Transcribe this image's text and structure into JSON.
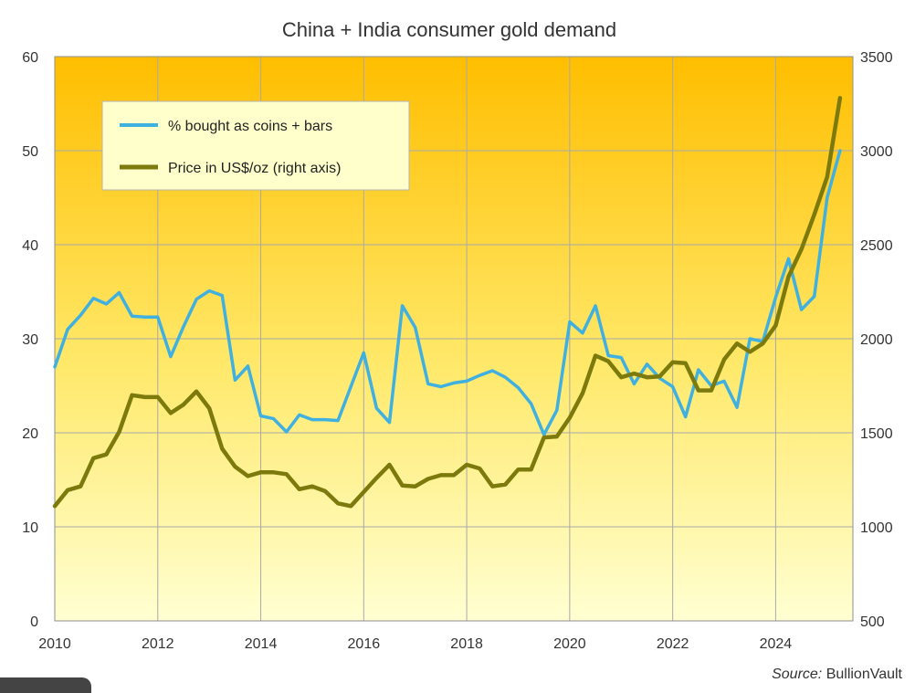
{
  "chart_data": {
    "type": "line",
    "title": "China + India consumer gold demand",
    "x_range": [
      2010,
      2025.5
    ],
    "x_ticks": [
      "2010",
      "2012",
      "2014",
      "2016",
      "2018",
      "2020",
      "2022",
      "2024"
    ],
    "left_axis": {
      "range": [
        0,
        60
      ],
      "ticks": [
        "0",
        "10",
        "20",
        "30",
        "40",
        "50",
        "60"
      ]
    },
    "right_axis": {
      "range": [
        500,
        3500
      ],
      "ticks": [
        "500",
        "1000",
        "1500",
        "2000",
        "2500",
        "3000",
        "3500"
      ]
    },
    "grid": true,
    "legend_position": "top-left",
    "series": [
      {
        "name": "% bought as coins + bars",
        "axis": "left",
        "color": "#3fb0e0",
        "points": [
          [
            2010.0,
            27.0
          ],
          [
            2010.25,
            31.0
          ],
          [
            2010.5,
            32.5
          ],
          [
            2010.75,
            34.3
          ],
          [
            2011.0,
            33.7
          ],
          [
            2011.25,
            34.9
          ],
          [
            2011.5,
            32.4
          ],
          [
            2011.75,
            32.3
          ],
          [
            2012.0,
            32.3
          ],
          [
            2012.25,
            28.1
          ],
          [
            2012.5,
            31.3
          ],
          [
            2012.75,
            34.2
          ],
          [
            2013.0,
            35.1
          ],
          [
            2013.25,
            34.6
          ],
          [
            2013.5,
            25.6
          ],
          [
            2013.75,
            27.1
          ],
          [
            2014.0,
            21.8
          ],
          [
            2014.25,
            21.5
          ],
          [
            2014.5,
            20.1
          ],
          [
            2014.75,
            21.9
          ],
          [
            2015.0,
            21.4
          ],
          [
            2015.25,
            21.4
          ],
          [
            2015.5,
            21.3
          ],
          [
            2015.75,
            24.9
          ],
          [
            2016.0,
            28.5
          ],
          [
            2016.25,
            22.6
          ],
          [
            2016.5,
            21.1
          ],
          [
            2016.75,
            33.5
          ],
          [
            2017.0,
            31.2
          ],
          [
            2017.25,
            25.2
          ],
          [
            2017.5,
            24.9
          ],
          [
            2017.75,
            25.3
          ],
          [
            2018.0,
            25.5
          ],
          [
            2018.25,
            26.1
          ],
          [
            2018.5,
            26.6
          ],
          [
            2018.75,
            25.9
          ],
          [
            2019.0,
            24.8
          ],
          [
            2019.25,
            23.1
          ],
          [
            2019.5,
            19.8
          ],
          [
            2019.75,
            22.4
          ],
          [
            2020.0,
            31.8
          ],
          [
            2020.25,
            30.6
          ],
          [
            2020.5,
            33.5
          ],
          [
            2020.75,
            28.2
          ],
          [
            2021.0,
            28.0
          ],
          [
            2021.25,
            25.2
          ],
          [
            2021.5,
            27.3
          ],
          [
            2021.75,
            25.8
          ],
          [
            2022.0,
            24.9
          ],
          [
            2022.25,
            21.7
          ],
          [
            2022.5,
            26.7
          ],
          [
            2022.75,
            25.0
          ],
          [
            2023.0,
            25.5
          ],
          [
            2023.25,
            22.7
          ],
          [
            2023.5,
            30.0
          ],
          [
            2023.75,
            29.7
          ],
          [
            2024.0,
            34.4
          ],
          [
            2024.25,
            38.5
          ],
          [
            2024.5,
            33.1
          ],
          [
            2024.75,
            34.5
          ],
          [
            2025.0,
            45.0
          ],
          [
            2025.25,
            50.0
          ]
        ]
      },
      {
        "name": "Price in US$/oz (right axis)",
        "axis": "right",
        "color": "#7c7a0c",
        "points": [
          [
            2010.0,
            1110
          ],
          [
            2010.25,
            1195
          ],
          [
            2010.5,
            1215
          ],
          [
            2010.75,
            1365
          ],
          [
            2011.0,
            1385
          ],
          [
            2011.25,
            1505
          ],
          [
            2011.5,
            1700
          ],
          [
            2011.75,
            1690
          ],
          [
            2012.0,
            1690
          ],
          [
            2012.25,
            1605
          ],
          [
            2012.5,
            1650
          ],
          [
            2012.75,
            1720
          ],
          [
            2013.0,
            1630
          ],
          [
            2013.25,
            1415
          ],
          [
            2013.5,
            1320
          ],
          [
            2013.75,
            1270
          ],
          [
            2014.0,
            1290
          ],
          [
            2014.25,
            1290
          ],
          [
            2014.5,
            1280
          ],
          [
            2014.75,
            1200
          ],
          [
            2015.0,
            1215
          ],
          [
            2015.25,
            1190
          ],
          [
            2015.5,
            1125
          ],
          [
            2015.75,
            1110
          ],
          [
            2016.0,
            1185
          ],
          [
            2016.25,
            1260
          ],
          [
            2016.5,
            1330
          ],
          [
            2016.75,
            1220
          ],
          [
            2017.0,
            1215
          ],
          [
            2017.25,
            1255
          ],
          [
            2017.5,
            1275
          ],
          [
            2017.75,
            1275
          ],
          [
            2018.0,
            1330
          ],
          [
            2018.25,
            1310
          ],
          [
            2018.5,
            1215
          ],
          [
            2018.75,
            1225
          ],
          [
            2019.0,
            1305
          ],
          [
            2019.25,
            1305
          ],
          [
            2019.5,
            1475
          ],
          [
            2019.75,
            1480
          ],
          [
            2020.0,
            1580
          ],
          [
            2020.25,
            1710
          ],
          [
            2020.5,
            1910
          ],
          [
            2020.75,
            1880
          ],
          [
            2021.0,
            1795
          ],
          [
            2021.25,
            1815
          ],
          [
            2021.5,
            1795
          ],
          [
            2021.75,
            1800
          ],
          [
            2022.0,
            1875
          ],
          [
            2022.25,
            1870
          ],
          [
            2022.5,
            1725
          ],
          [
            2022.75,
            1725
          ],
          [
            2023.0,
            1890
          ],
          [
            2023.25,
            1975
          ],
          [
            2023.5,
            1930
          ],
          [
            2023.75,
            1975
          ],
          [
            2024.0,
            2070
          ],
          [
            2024.25,
            2330
          ],
          [
            2024.5,
            2475
          ],
          [
            2024.75,
            2660
          ],
          [
            2025.0,
            2860
          ],
          [
            2025.25,
            3280
          ]
        ]
      }
    ]
  },
  "source": {
    "label": "Source:",
    "name": "BullionVault"
  },
  "colors": {
    "background_top": "#ffbf00",
    "background_bottom": "#ffffcf",
    "grid": "#aaaaaa",
    "legend_bg": "#ffffcc"
  }
}
